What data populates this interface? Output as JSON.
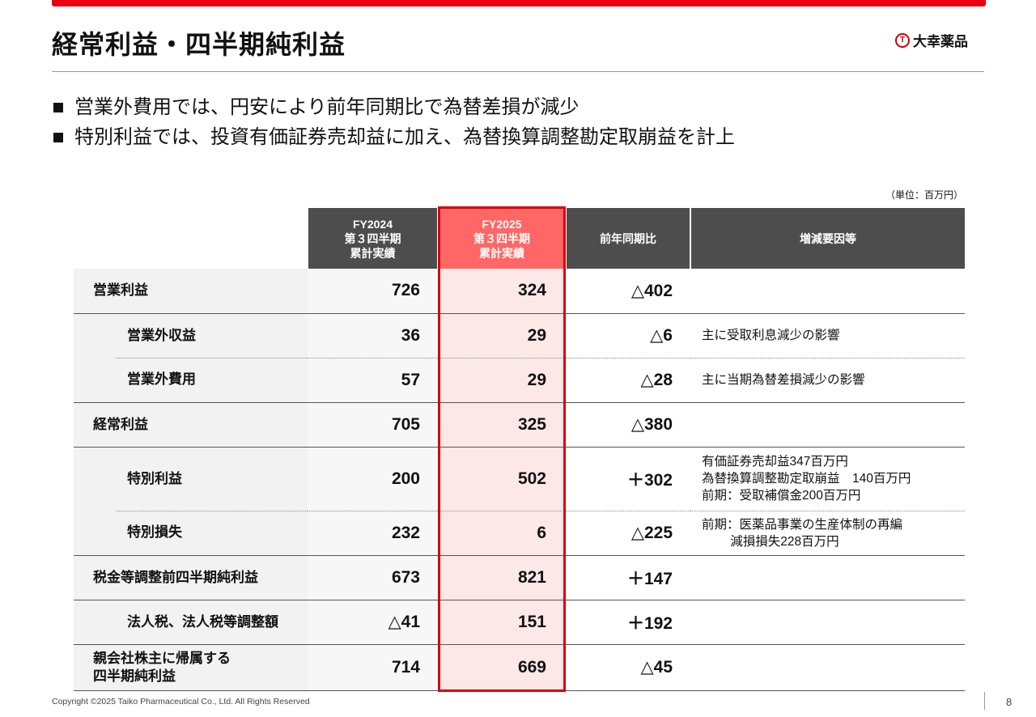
{
  "header": {
    "title": "経常利益・四半期純利益",
    "logo_text": "大幸薬品"
  },
  "bullets": [
    "営業外費用では、円安により前年同期比で為替差損が減少",
    "特別利益では、投資有価証券売却益に加え、為替換算調整勘定取崩益を計上"
  ],
  "unit": "（単位：百万円）",
  "table": {
    "headers": [
      [
        "FY2024",
        "第３四半期",
        "累計実績"
      ],
      [
        "FY2025",
        "第３四半期",
        "累計実績"
      ],
      "前年同期比",
      "増減要因等"
    ],
    "rows": [
      {
        "label": "営業利益",
        "fy2024": "726",
        "fy2025": "324",
        "diff": "△402",
        "note": []
      },
      {
        "label": "営業外収益",
        "fy2024": "36",
        "fy2025": "29",
        "diff": "△6",
        "note": [
          "主に受取利息減少の影響"
        ]
      },
      {
        "label": "営業外費用",
        "fy2024": "57",
        "fy2025": "29",
        "diff": "△28",
        "note": [
          "主に当期為替差損減少の影響"
        ]
      },
      {
        "label": "経常利益",
        "fy2024": "705",
        "fy2025": "325",
        "diff": "△380",
        "note": []
      },
      {
        "label": "特別利益",
        "fy2024": "200",
        "fy2025": "502",
        "diff": "＋302",
        "note": [
          "有価証券売却益347百万円",
          "為替換算調整勘定取崩益　140百万円",
          "前期：受取補償金200百万円"
        ]
      },
      {
        "label": "特別損失",
        "fy2024": "232",
        "fy2025": "6",
        "diff": "△225",
        "note": [
          "前期：医薬品事業の生産体制の再編",
          "　　 減損損失228百万円"
        ]
      },
      {
        "label": "税金等調整前四半期純利益",
        "fy2024": "673",
        "fy2025": "821",
        "diff": "＋147",
        "note": []
      },
      {
        "label": "法人税、法人税等調整額",
        "fy2024": "△41",
        "fy2025": "151",
        "diff": "＋192",
        "note": []
      },
      {
        "label": "親会社株主に帰属する四半期純利益",
        "label_lines": [
          "親会社株主に帰属する",
          "四半期純利益"
        ],
        "fy2024": "714",
        "fy2025": "669",
        "diff": "△45",
        "note": []
      }
    ]
  },
  "footer": {
    "copyright": "Copyright ©2025  Taiko Pharmaceutical Co., Ltd. All Rights Reserved",
    "page": "8"
  }
}
